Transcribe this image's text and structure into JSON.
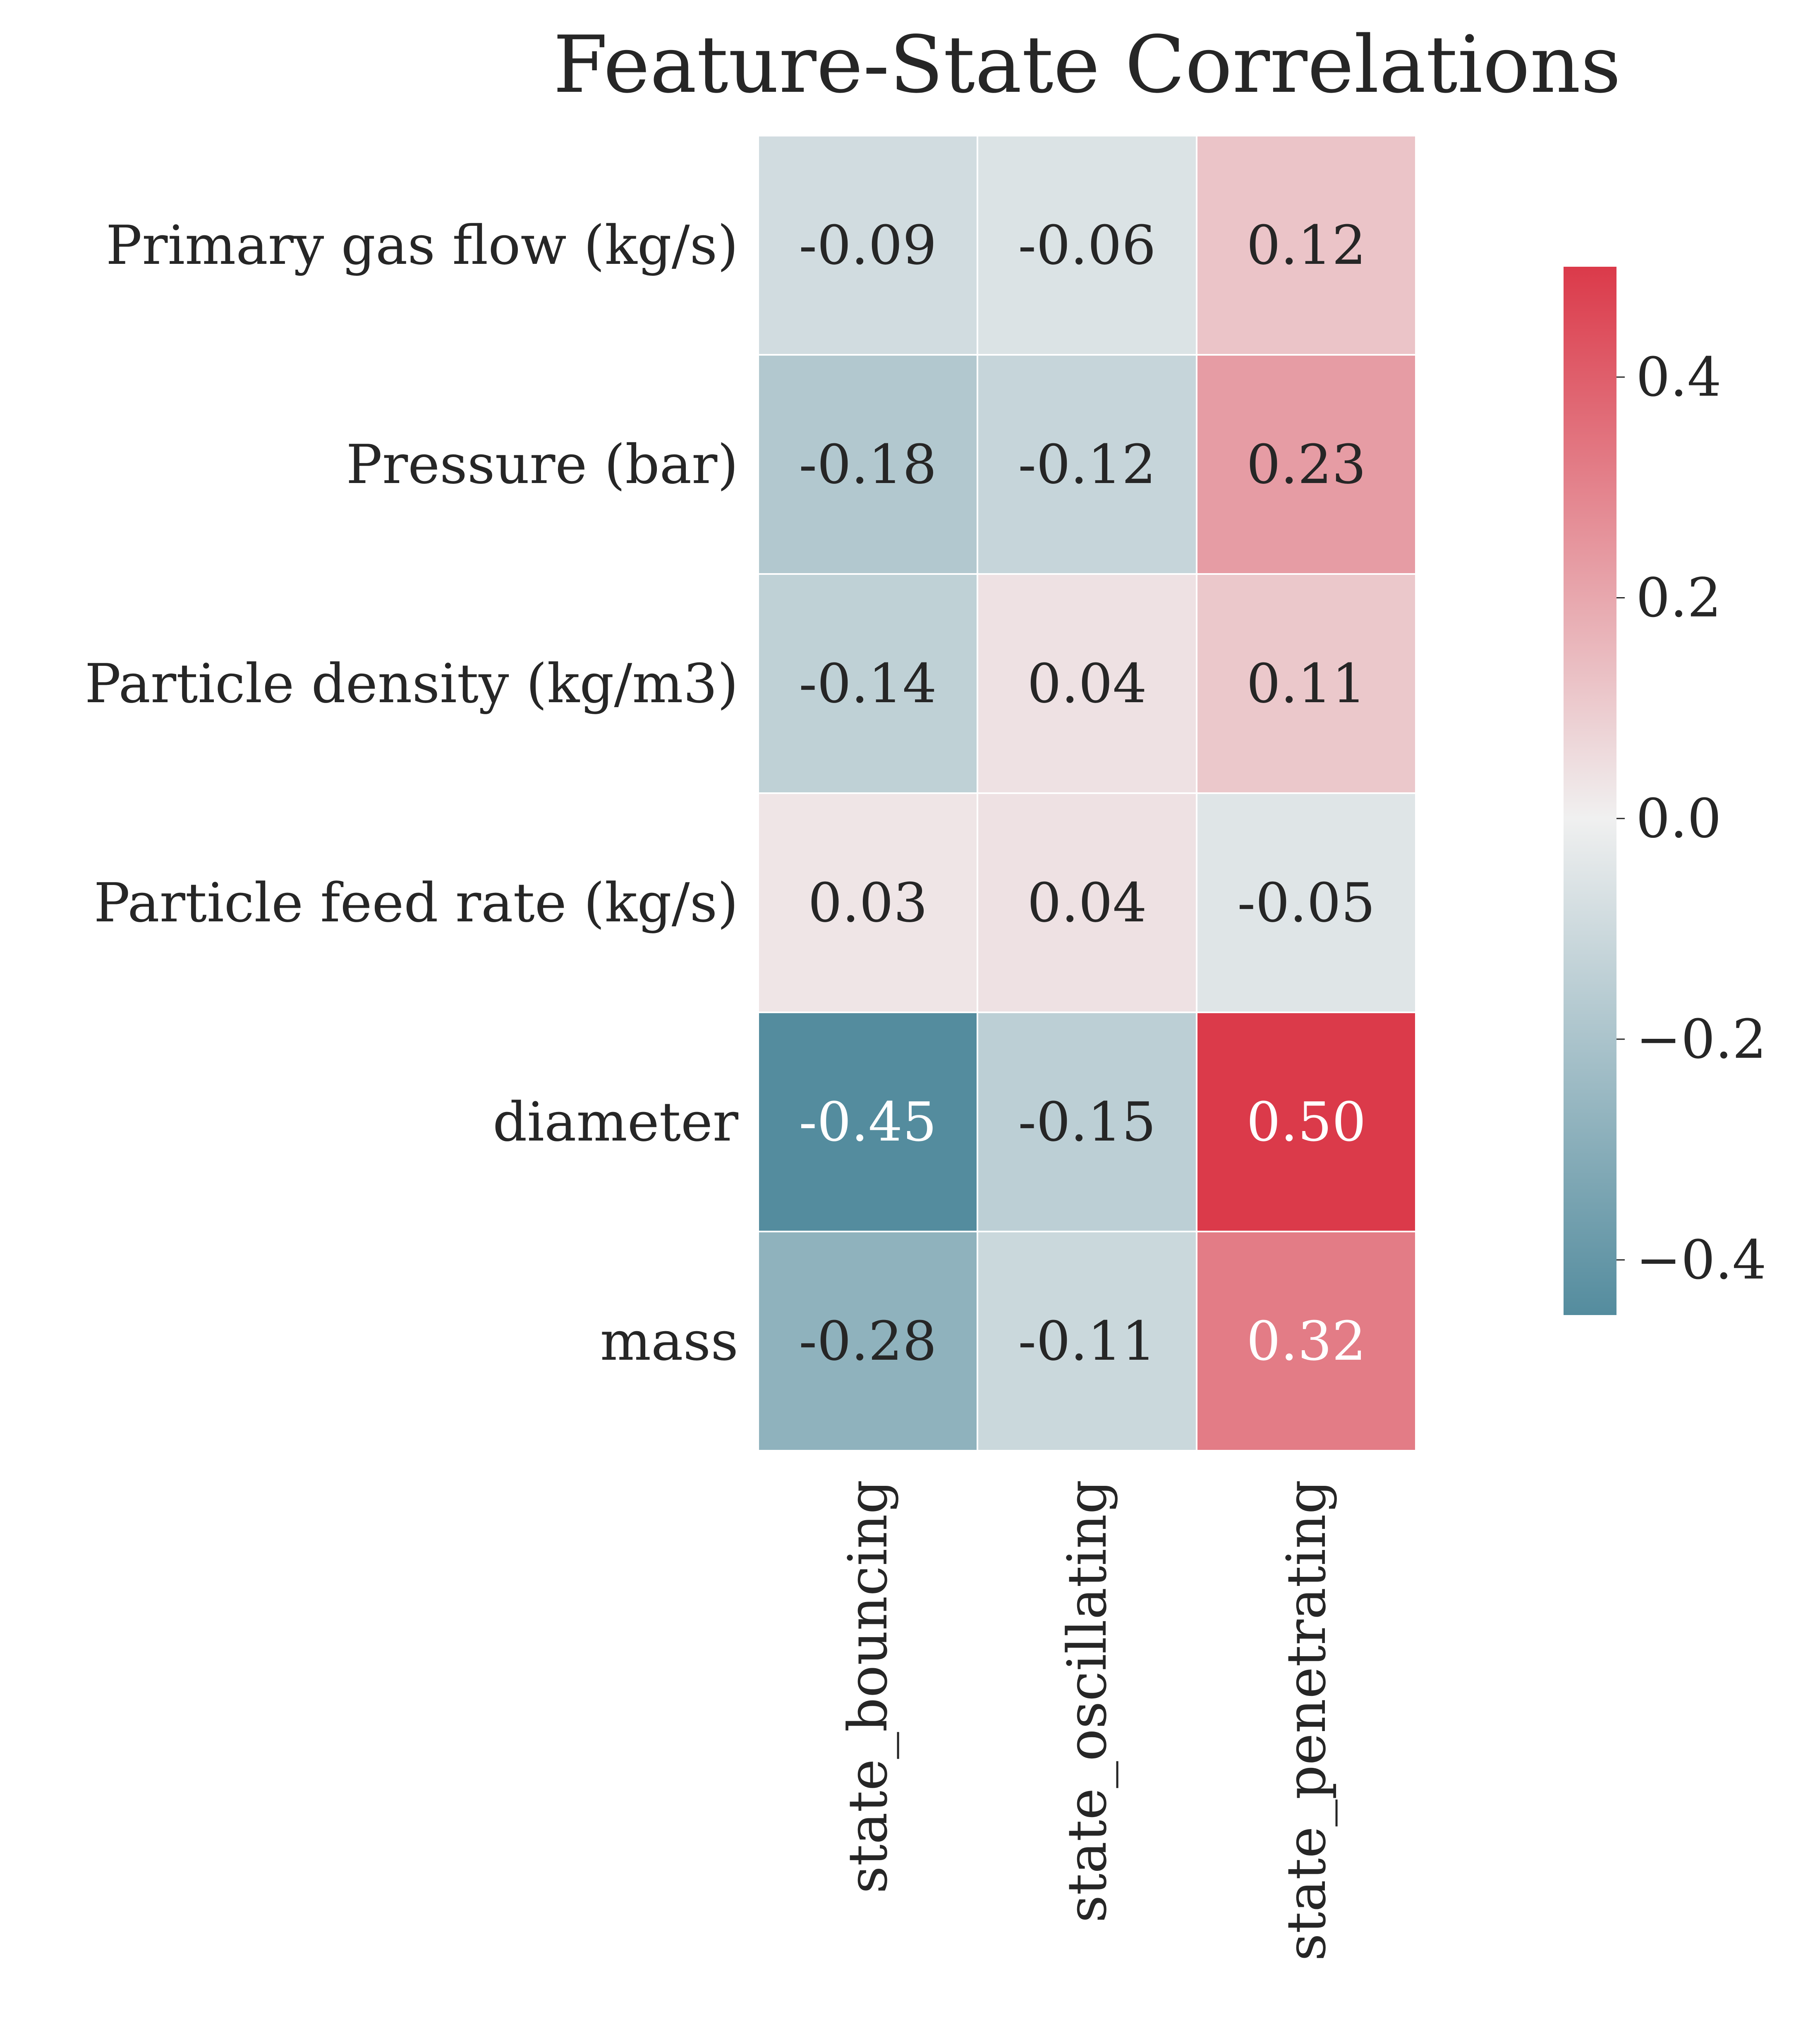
{
  "chart_data": {
    "type": "heatmap",
    "title": "Feature-State Correlations",
    "rows": [
      "Primary gas flow (kg/s)",
      "Pressure (bar)",
      "Particle density (kg/m3)",
      "Particle feed rate (kg/s)",
      "diameter",
      "mass"
    ],
    "columns": [
      "state_bouncing",
      "state_oscillating",
      "state_penetrating"
    ],
    "values": [
      [
        -0.09,
        -0.06,
        0.12
      ],
      [
        -0.18,
        -0.12,
        0.23
      ],
      [
        -0.14,
        0.04,
        0.11
      ],
      [
        0.03,
        0.04,
        -0.05
      ],
      [
        -0.45,
        -0.15,
        0.5
      ],
      [
        -0.28,
        -0.11,
        0.32
      ]
    ],
    "cell_labels": [
      [
        "-0.09",
        "-0.06",
        "0.12"
      ],
      [
        "-0.18",
        "-0.12",
        "0.23"
      ],
      [
        "-0.14",
        "0.04",
        "0.11"
      ],
      [
        "0.03",
        "0.04",
        "-0.05"
      ],
      [
        "-0.45",
        "-0.15",
        "0.50"
      ],
      [
        "-0.28",
        "-0.11",
        "0.32"
      ]
    ],
    "colorbar": {
      "range": [
        -0.45,
        0.5
      ],
      "ticks": [
        0.4,
        0.2,
        0.0,
        -0.2,
        -0.4
      ],
      "tick_labels": [
        "0.4",
        "0.2",
        "0.0",
        "−0.2",
        "−0.4"
      ],
      "low_color": "#548c9e",
      "mid_color": "#f0f0f0",
      "high_color": "#db3a4a"
    },
    "grid": false,
    "cell_separator_color": "#ffffff"
  }
}
